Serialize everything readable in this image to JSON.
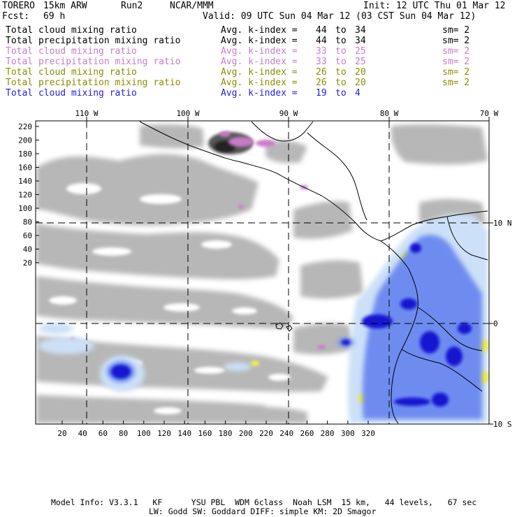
{
  "header": {
    "model": "TORERO",
    "resolution": "15km ARW",
    "run": "Run2",
    "org": "NCAR/MMM",
    "init": "Init: 12 UTC Thu 01 Mar 12",
    "fcst_label": "Fcst:",
    "fcst_value": "69 h",
    "valid": "Valid: 09 UTC Sun 04 Mar 12 (03 CST Sun 04 Mar 12)"
  },
  "legend": [
    {
      "field": "Total cloud mixing ratio",
      "index": "Avg. k-index =",
      "from": "44",
      "to_word": "to",
      "to": "34",
      "sm": "sm= 2",
      "color": "#000000"
    },
    {
      "field": "Total precipitation mixing ratio",
      "index": "Avg. k-index =",
      "from": "44",
      "to_word": "to",
      "to": "34",
      "sm": "sm= 2",
      "color": "#000000"
    },
    {
      "field": "Total cloud mixing ratio",
      "index": "Avg. k-index =",
      "from": "33",
      "to_word": "to",
      "to": "25",
      "sm": "sm= 2",
      "color": "#c87cc8"
    },
    {
      "field": "Total precipitation mixing ratio",
      "index": "Avg. k-index =",
      "from": "33",
      "to_word": "to",
      "to": "25",
      "sm": "sm= 2",
      "color": "#c87cc8"
    },
    {
      "field": "Total cloud mixing ratio",
      "index": "Avg. k-index =",
      "from": "26",
      "to_word": "to",
      "to": "20",
      "sm": "sm= 2",
      "color": "#8c8c00"
    },
    {
      "field": "Total precipitation mixing ratio",
      "index": "Avg. k-index =",
      "from": "26",
      "to_word": "to",
      "to": "20",
      "sm": "sm= 2",
      "color": "#8c8c00"
    },
    {
      "field": "Total cloud mixing ratio",
      "index": "Avg. k-index =",
      "from": "19",
      "to_word": "to",
      "to": "4",
      "sm": "",
      "color": "#1e1ee6"
    }
  ],
  "axes": {
    "top": [
      "110 W",
      "100 W",
      "90 W",
      "80 W",
      "70 W"
    ],
    "right": [
      "10 N",
      "0",
      "10 S"
    ],
    "left": [
      "220",
      "200",
      "180",
      "160",
      "140",
      "120",
      "100",
      "80",
      "60",
      "40",
      "20"
    ],
    "bottom": [
      "20",
      "40",
      "60",
      "80",
      "100",
      "120",
      "140",
      "160",
      "180",
      "200",
      "220",
      "240",
      "260",
      "280",
      "300",
      "320"
    ]
  },
  "footer": {
    "line1": "Model Info: V3.3.1   KF      YSU PBL  WDM 6class  Noah LSM  15 km,   44 levels,   67 sec",
    "line2": "LW: Godd SW: Goddard DIFF: simple KM: 2D Smagor"
  },
  "colors": {
    "background": "#ffffff",
    "cloud_gray": "#b4b4b4",
    "cloud_dark": "#3c3c3c",
    "magenta": "#c87cc8",
    "yellow": "#f0f050",
    "light_blue": "#cce0f8",
    "mid_blue": "#6e8cf0",
    "deep_blue": "#1414d2"
  }
}
